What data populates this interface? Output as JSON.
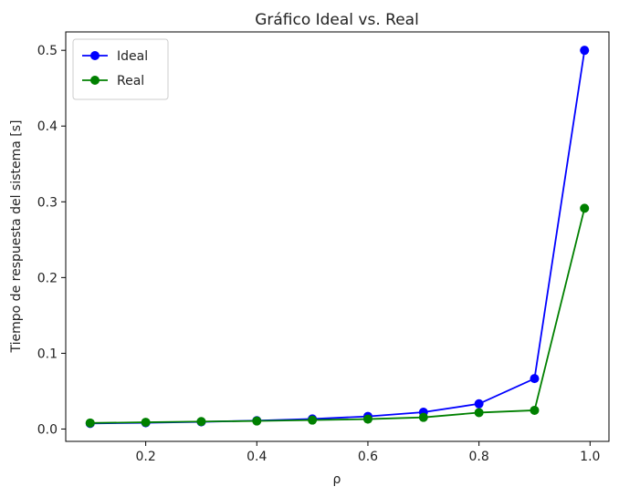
{
  "chart_data": {
    "type": "line",
    "title": "Gráfico Ideal vs. Real",
    "xlabel": "ρ",
    "ylabel": "Tiempo de respuesta del sistema [s]",
    "xlim": [
      0.056,
      1.034
    ],
    "ylim": [
      -0.0163,
      0.5243
    ],
    "xticks": [
      0.2,
      0.4,
      0.6,
      0.8,
      1.0
    ],
    "xtick_labels": [
      "0.2",
      "0.4",
      "0.6",
      "0.8",
      "1.0"
    ],
    "yticks": [
      0.0,
      0.1,
      0.2,
      0.3,
      0.4,
      0.5
    ],
    "ytick_labels": [
      "0.0",
      "0.1",
      "0.2",
      "0.3",
      "0.4",
      "0.5"
    ],
    "grid": false,
    "legend_position": "upper-left",
    "x": [
      0.1,
      0.2,
      0.3,
      0.4,
      0.5,
      0.6,
      0.7,
      0.8,
      0.9,
      0.99
    ],
    "series": [
      {
        "name": "Ideal",
        "color": "#0000ff",
        "values": [
          0.0074,
          0.0083,
          0.0095,
          0.0111,
          0.0133,
          0.0167,
          0.0222,
          0.0333,
          0.0666,
          0.5
        ]
      },
      {
        "name": "Real",
        "color": "#008000",
        "values": [
          0.008,
          0.0089,
          0.0099,
          0.0106,
          0.0118,
          0.0131,
          0.0154,
          0.0217,
          0.0247,
          0.2915
        ]
      }
    ]
  }
}
